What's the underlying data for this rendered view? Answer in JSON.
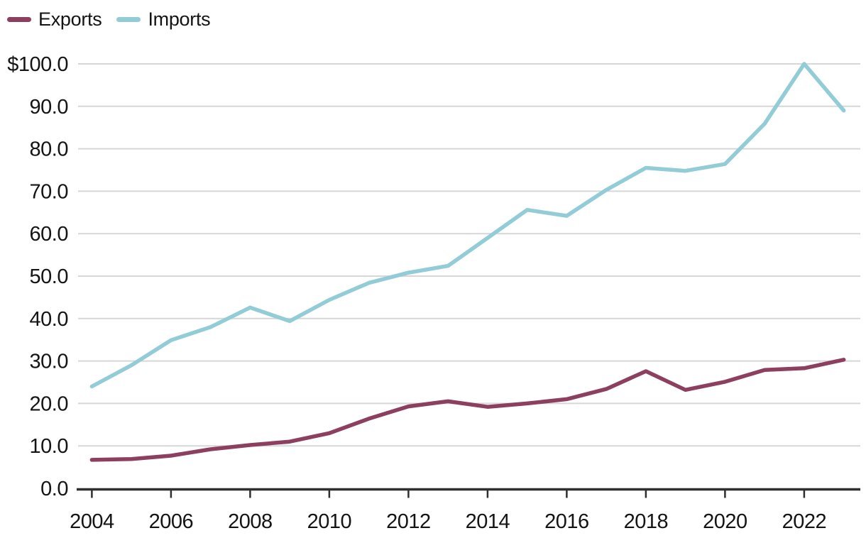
{
  "chart_data": {
    "type": "line",
    "title": "",
    "xlabel": "",
    "ylabel": "",
    "x": [
      2004,
      2005,
      2006,
      2007,
      2008,
      2009,
      2010,
      2011,
      2012,
      2013,
      2014,
      2015,
      2016,
      2017,
      2018,
      2019,
      2020,
      2021,
      2022,
      2023
    ],
    "series": [
      {
        "name": "Exports",
        "color": "#8d3f60",
        "values": [
          6.7,
          6.9,
          7.7,
          9.2,
          10.2,
          11.0,
          13.0,
          16.4,
          19.3,
          20.5,
          19.2,
          20.0,
          21.0,
          23.4,
          27.6,
          23.2,
          25.1,
          27.9,
          28.3,
          30.3
        ]
      },
      {
        "name": "Imports",
        "color": "#92ccd7",
        "values": [
          24.0,
          29.0,
          34.9,
          38.0,
          42.6,
          39.4,
          44.4,
          48.4,
          50.8,
          52.4,
          59.0,
          65.6,
          64.2,
          70.3,
          75.5,
          74.8,
          76.4,
          85.9,
          100.0,
          89.0
        ]
      }
    ],
    "xlim": [
      2004,
      2023
    ],
    "ylim": [
      0,
      100
    ],
    "xticks": [
      2004,
      2006,
      2008,
      2010,
      2012,
      2014,
      2016,
      2018,
      2020,
      2022
    ],
    "yticks": [
      0,
      10,
      20,
      30,
      40,
      50,
      60,
      70,
      80,
      90,
      100
    ],
    "ytick_labels": [
      "0.0",
      "10.0",
      "20.0",
      "30.0",
      "40.0",
      "50.0",
      "60.0",
      "70.0",
      "80.0",
      "90.0",
      "$100.0"
    ],
    "grid": "horizontal",
    "legend_position": "top-left",
    "colors": {
      "grid": "#d7d7d7",
      "axis": "#2f2f2f",
      "text": "#141414",
      "background": "#ffffff"
    }
  }
}
